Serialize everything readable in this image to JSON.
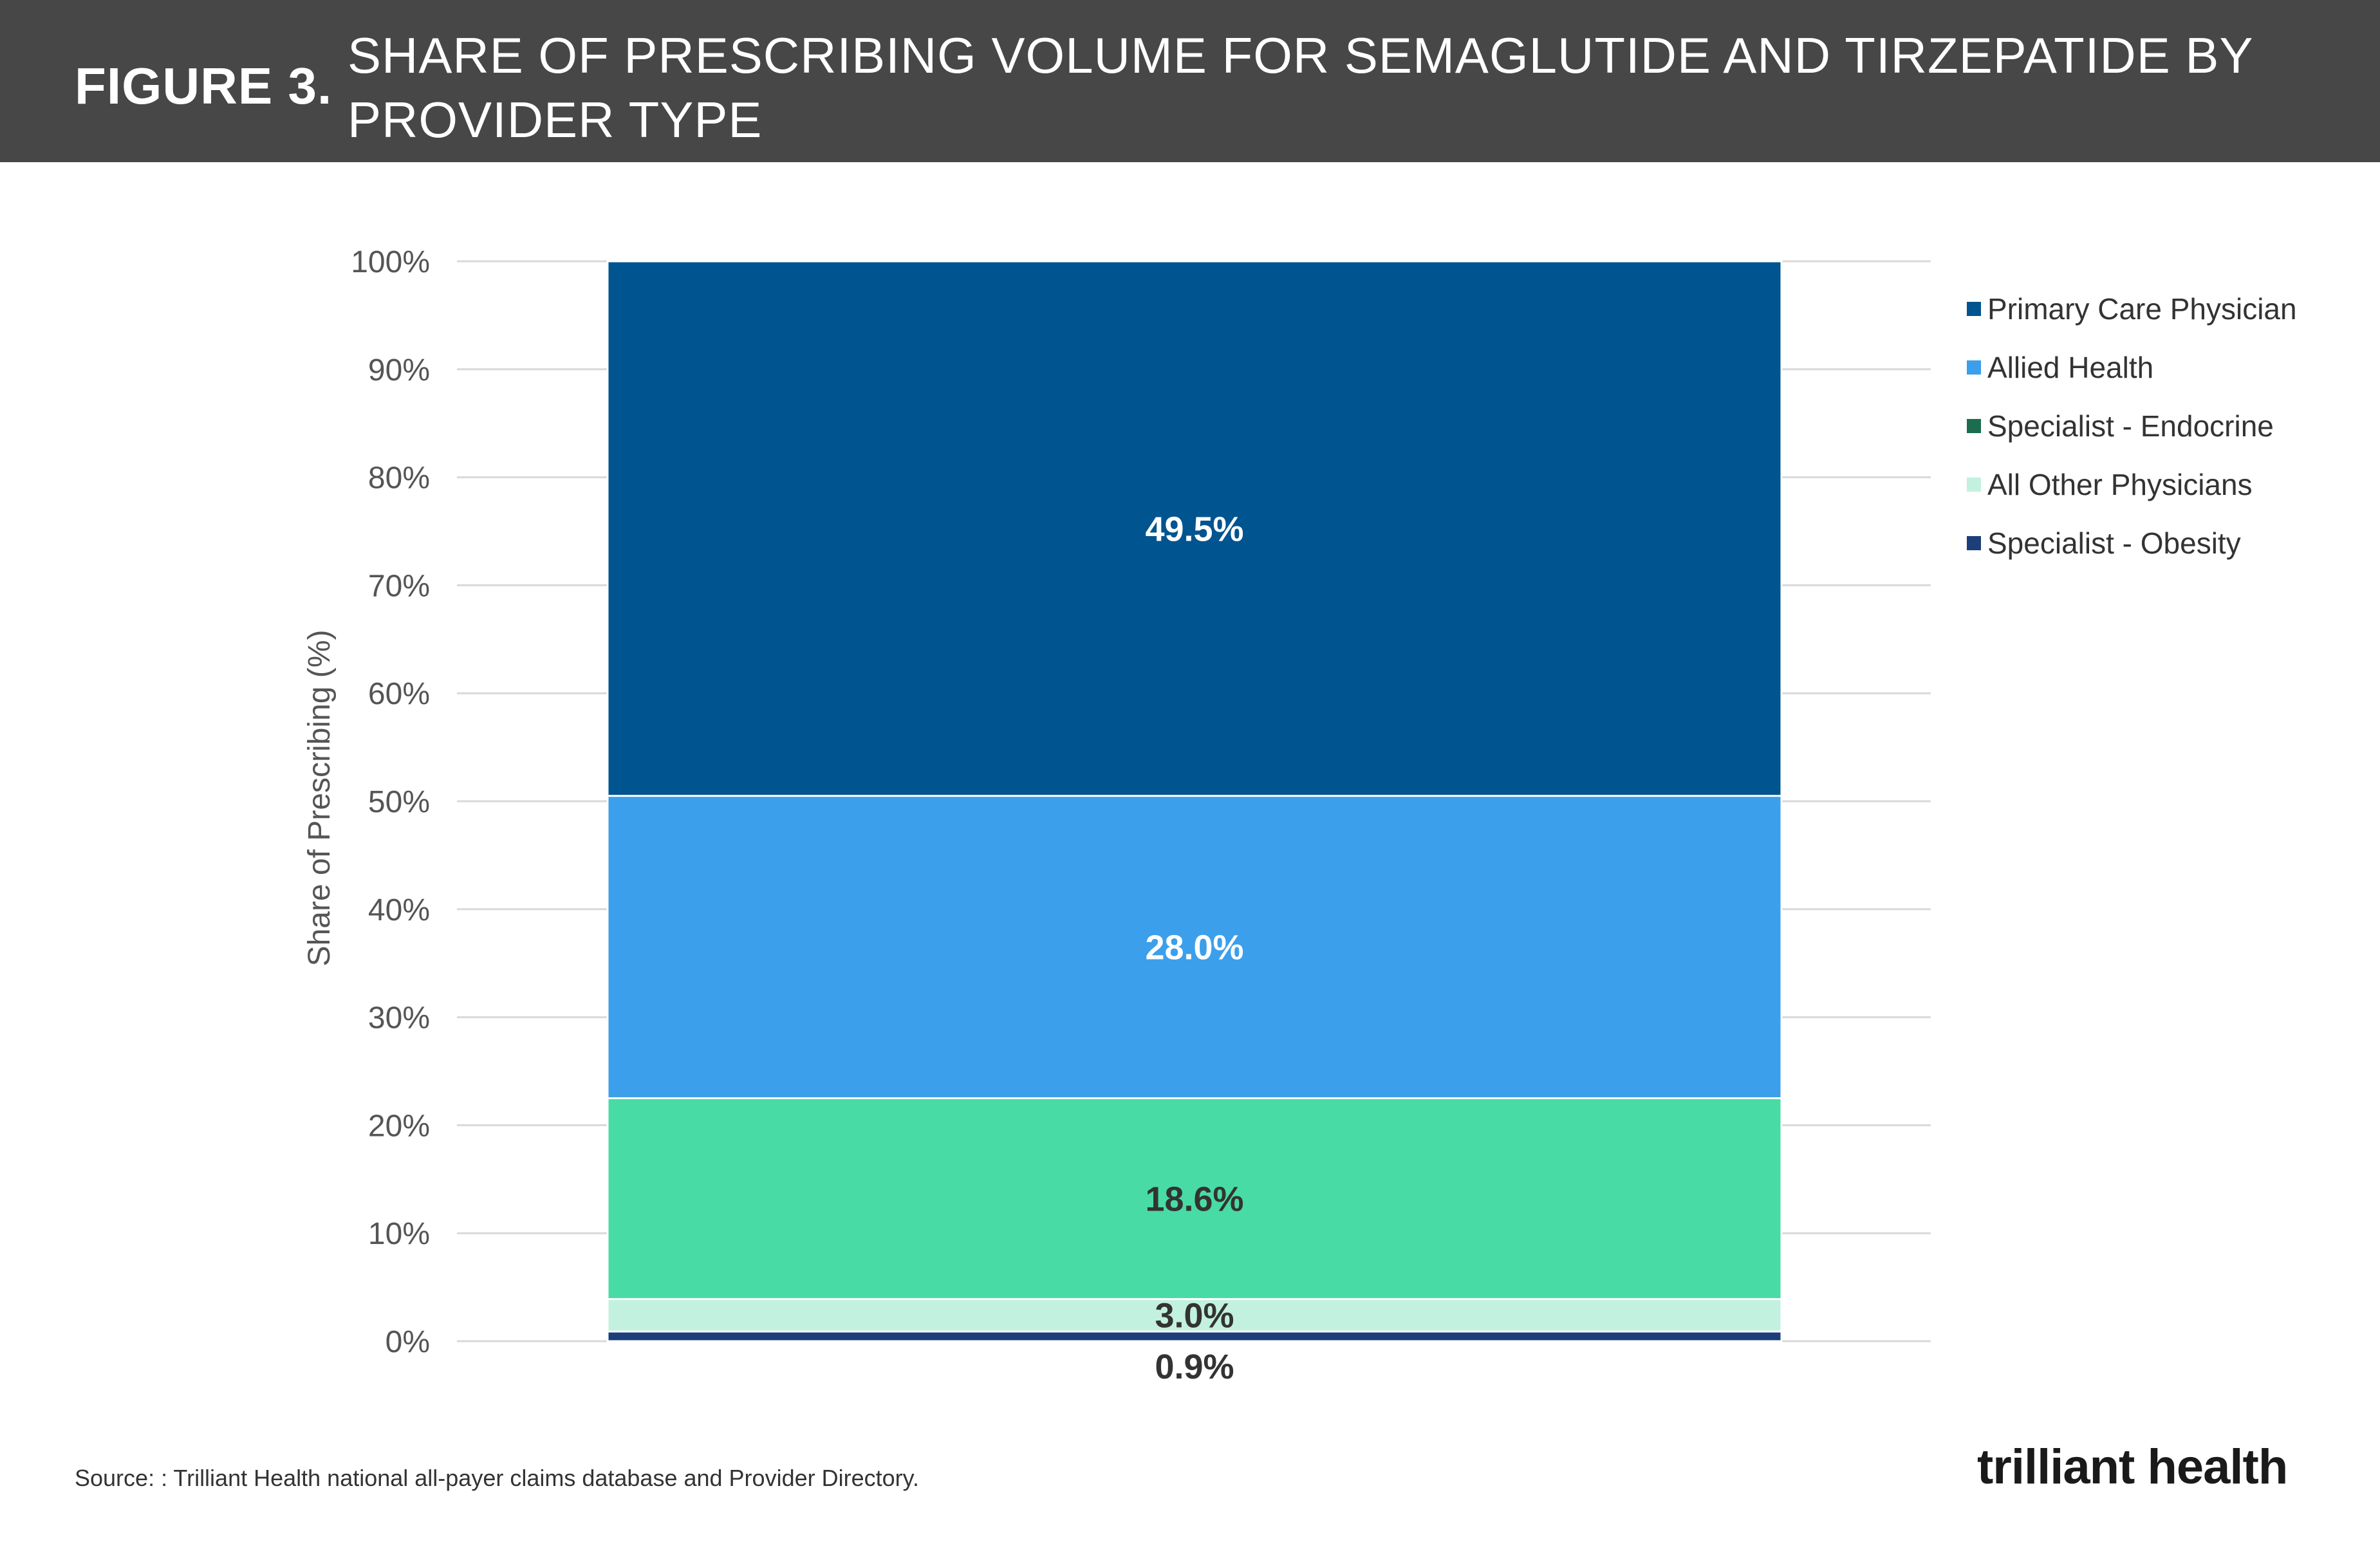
{
  "header": {
    "figure_label": "FIGURE 3.",
    "title": "SHARE OF PRESCRIBING VOLUME FOR SEMAGLUTIDE AND TIRZEPATIDE BY PROVIDER TYPE"
  },
  "chart_data": {
    "type": "bar",
    "stacked": true,
    "categories": [
      ""
    ],
    "ylabel": "Share of Prescribing (%)",
    "ylim": [
      0,
      100
    ],
    "yticks": [
      "0%",
      "10%",
      "20%",
      "30%",
      "40%",
      "50%",
      "60%",
      "70%",
      "80%",
      "90%",
      "100%"
    ],
    "grid": true,
    "legend_position": "right",
    "series": [
      {
        "name": "Specialist - Obesity",
        "values": [
          0.9
        ],
        "label": "0.9%",
        "color": "#1c3f7a",
        "label_color": "#333333"
      },
      {
        "name": "All Other Physicians",
        "values": [
          3.0
        ],
        "label": "3.0%",
        "color": "#c3f1df",
        "label_color": "#333333"
      },
      {
        "name": "Specialist - Endocrine",
        "values": [
          18.6
        ],
        "label": "18.6%",
        "color": "#48dba5",
        "label_color": "#333333"
      },
      {
        "name": "Allied Health",
        "values": [
          28.0
        ],
        "label": "28.0%",
        "color": "#3b9fec",
        "label_color": "#ffffff"
      },
      {
        "name": "Primary Care Physician",
        "values": [
          49.5
        ],
        "label": "49.5%",
        "color": "#00548f",
        "label_color": "#ffffff"
      }
    ],
    "legend": [
      {
        "name": "Primary Care Physician",
        "color": "#00548f"
      },
      {
        "name": "Allied Health",
        "color": "#3b9fec"
      },
      {
        "name": "Specialist - Endocrine",
        "color": "#1a6e4f"
      },
      {
        "name": "All Other Physicians",
        "color": "#c3f1df"
      },
      {
        "name": "Specialist - Obesity",
        "color": "#1c3f7a"
      }
    ]
  },
  "footer": {
    "source": "Source: : Trilliant Health national all-payer claims database and Provider Directory.",
    "logo_text": "trilliant health"
  }
}
